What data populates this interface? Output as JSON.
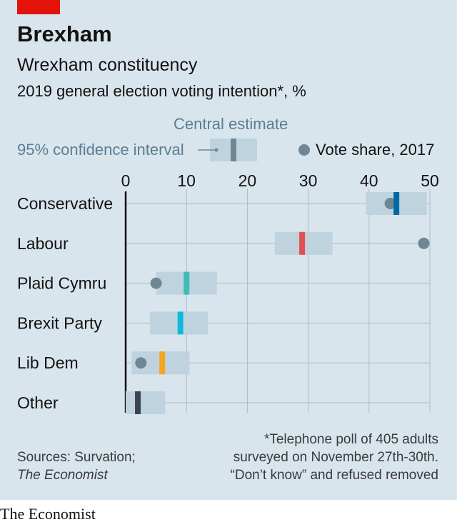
{
  "header": {
    "title": "Brexham",
    "subtitle": "Wrexham constituency",
    "description": "2019 general election voting intention*, %"
  },
  "legend": {
    "central_estimate": "Central estimate",
    "confidence_interval": "95% confidence interval",
    "vote_share": "Vote share, 2017"
  },
  "notes": {
    "sources_line1": "Sources: Survation;",
    "sources_line2": "The Economist",
    "footnote_line1": "*Telephone poll of 405 adults",
    "footnote_line2": "surveyed on November 27th-30th.",
    "footnote_line3": "“Don’t know” and refused removed"
  },
  "brand": "The Economist",
  "colors": {
    "background": "#d9e5ec",
    "interval": "#bfd3df",
    "gridline": "#a9bcc8",
    "dot": "#6f8795",
    "axis": "#121212",
    "brand_red": "#e3120b"
  },
  "chart_data": {
    "type": "dot-interval",
    "xlim": [
      0,
      50
    ],
    "ticks": [
      0,
      10,
      20,
      30,
      40,
      50
    ],
    "grid": true,
    "legend_position": "top",
    "categories": [
      "Conservative",
      "Labour",
      "Plaid Cymru",
      "Brexit Party",
      "Lib Dem",
      "Other"
    ],
    "series": [
      {
        "name": "Central estimate",
        "values": [
          44.5,
          29,
          10,
          9,
          6,
          2
        ],
        "ci_low": [
          39.5,
          24.5,
          5,
          4,
          1,
          0
        ],
        "ci_high": [
          49.5,
          34,
          15,
          13.5,
          10.5,
          6.5
        ],
        "colors": [
          "#006ba2",
          "#e64e53",
          "#3ebcb6",
          "#0ebada",
          "#f5a623",
          "#3b4252"
        ]
      },
      {
        "name": "Vote share, 2017",
        "values": [
          43.5,
          49,
          5,
          null,
          2.5,
          null
        ]
      }
    ]
  }
}
